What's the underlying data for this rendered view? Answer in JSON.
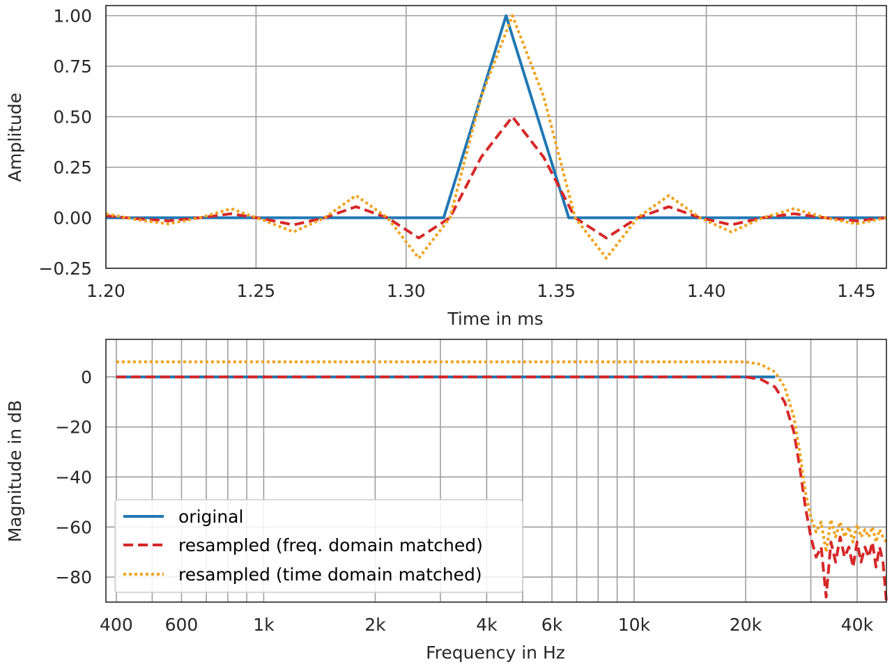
{
  "colors": {
    "original": "#1f77b4",
    "freq": "#d62728",
    "time": "#f0a21c",
    "grid": "#b0b0b0",
    "axis": "#262626"
  },
  "chart_data": [
    {
      "type": "line",
      "xlabel": "Time in ms",
      "ylabel": "Amplitude",
      "xlim": [
        1.2,
        1.46
      ],
      "ylim": [
        -0.25,
        1.05
      ],
      "xticks": [
        1.2,
        1.25,
        1.3,
        1.35,
        1.4,
        1.45
      ],
      "xtick_labels": [
        "1.20",
        "1.25",
        "1.30",
        "1.35",
        "1.40",
        "1.45"
      ],
      "yticks": [
        -0.25,
        0,
        0.25,
        0.5,
        0.75,
        1.0
      ],
      "ytick_labels": [
        "−0.25",
        "0.00",
        "0.25",
        "0.50",
        "0.75",
        "1.00"
      ],
      "grid": true,
      "series": [
        {
          "name": "original",
          "style": "solid",
          "x": [
            1.2,
            1.3125,
            1.3333,
            1.3542,
            1.46
          ],
          "y": [
            0,
            0,
            1.0,
            0,
            0
          ]
        },
        {
          "name": "resampled (freq. domain matched)",
          "style": "dashed",
          "x": [
            1.2,
            1.2104,
            1.2208,
            1.2313,
            1.2417,
            1.2521,
            1.2625,
            1.2729,
            1.2833,
            1.2938,
            1.3042,
            1.3146,
            1.325,
            1.3354,
            1.3458,
            1.3563,
            1.3667,
            1.3771,
            1.3875,
            1.3979,
            1.4083,
            1.4188,
            1.4292,
            1.4396,
            1.45,
            1.46
          ],
          "y": [
            0.01,
            -0.005,
            -0.015,
            0.0,
            0.02,
            -0.005,
            -0.035,
            0.0,
            0.055,
            0.0,
            -0.1,
            0.0,
            0.3,
            0.5,
            0.3,
            0.0,
            -0.1,
            0.0,
            0.055,
            0.0,
            -0.035,
            0.0,
            0.02,
            0.0,
            -0.015,
            0.0
          ]
        },
        {
          "name": "resampled (time domain matched)",
          "style": "dotted",
          "x": [
            1.2,
            1.2104,
            1.2208,
            1.2313,
            1.2417,
            1.2521,
            1.2625,
            1.2729,
            1.2833,
            1.2938,
            1.3042,
            1.3146,
            1.325,
            1.3354,
            1.3458,
            1.3563,
            1.3667,
            1.3771,
            1.3875,
            1.3979,
            1.4083,
            1.4188,
            1.4292,
            1.4396,
            1.45,
            1.46
          ],
          "y": [
            0.02,
            -0.01,
            -0.03,
            0.0,
            0.045,
            -0.01,
            -0.07,
            0.0,
            0.11,
            0.0,
            -0.2,
            0.0,
            0.6,
            1.0,
            0.6,
            0.0,
            -0.2,
            0.0,
            0.11,
            0.0,
            -0.07,
            0.0,
            0.045,
            0.0,
            -0.03,
            0.0
          ]
        }
      ]
    },
    {
      "type": "line",
      "xscale": "log",
      "xlabel": "Frequency in Hz",
      "ylabel": "Magnitude in dB",
      "xlim": [
        375,
        48000
      ],
      "ylim": [
        -90,
        15
      ],
      "xticks": [
        400,
        600,
        1000,
        2000,
        4000,
        6000,
        10000,
        20000,
        40000
      ],
      "xtick_labels": [
        "400",
        "600",
        "1k",
        "2k",
        "4k",
        "6k",
        "10k",
        "20k",
        "40k"
      ],
      "yticks": [
        -80,
        -60,
        -40,
        -20,
        0
      ],
      "ytick_labels": [
        "−80",
        "−60",
        "−40",
        "−20",
        "0"
      ],
      "grid": true,
      "legend_position": "lower-left",
      "series": [
        {
          "name": "original",
          "style": "solid",
          "x": [
            400,
            24000
          ],
          "y": [
            0,
            0
          ]
        },
        {
          "name": "resampled (freq. domain matched)",
          "style": "dashed",
          "x": [
            400,
            20000,
            22000,
            24000,
            25500,
            27000,
            28000,
            29000,
            30000,
            31000,
            32000,
            33000,
            34000,
            35000,
            36000,
            37000,
            38000,
            39000,
            40000,
            41000,
            42000,
            43000,
            44000,
            45000,
            46000,
            47000,
            48000
          ],
          "y": [
            0,
            0,
            -1,
            -4,
            -10,
            -22,
            -36,
            -52,
            -64,
            -72,
            -68,
            -88,
            -66,
            -74,
            -64,
            -72,
            -68,
            -76,
            -66,
            -74,
            -68,
            -72,
            -66,
            -76,
            -68,
            -74,
            -90
          ]
        },
        {
          "name": "resampled (time domain matched)",
          "style": "dotted",
          "x": [
            400,
            20000,
            22000,
            24000,
            25500,
            27000,
            28000,
            29000,
            30000,
            31000,
            32000,
            33000,
            34000,
            35000,
            36000,
            37000,
            38000,
            39000,
            40000,
            41000,
            42000,
            43000,
            44000,
            45000,
            46000,
            47000,
            48000
          ],
          "y": [
            6,
            6,
            5,
            2,
            -4,
            -16,
            -30,
            -46,
            -56,
            -62,
            -58,
            -70,
            -57,
            -64,
            -58,
            -64,
            -60,
            -66,
            -59,
            -64,
            -61,
            -64,
            -60,
            -66,
            -61,
            -64,
            -66
          ]
        }
      ]
    }
  ]
}
